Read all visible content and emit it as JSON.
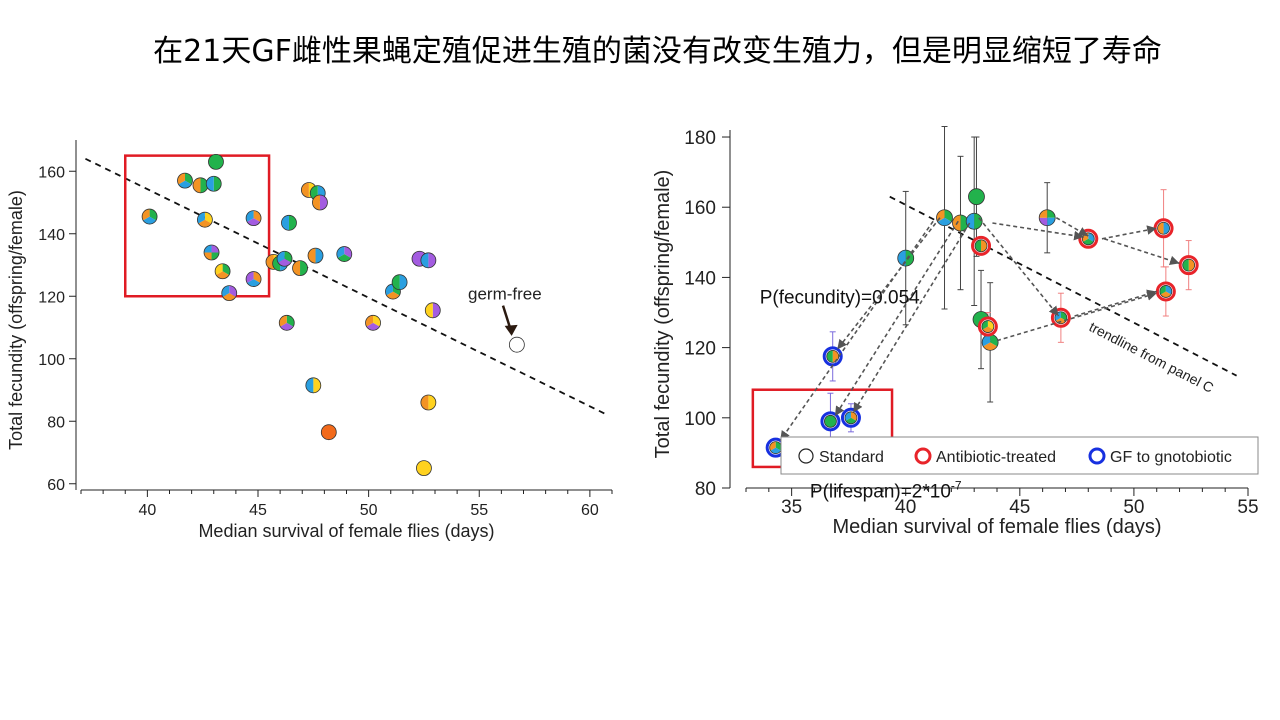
{
  "slide": {
    "title": "在21天GF雌性果蝇定殖促进生殖的菌没有改变生殖力，但是明显缩短了寿命"
  },
  "colors": {
    "green": "#22b24c",
    "orange": "#f39324",
    "blue": "#2a9fe0",
    "purple": "#a35ce0",
    "yellow": "#ffd21f",
    "red_orange": "#f26a1b",
    "red": "#e8242a",
    "blue_ring": "#1730e0",
    "highlight_box": "#e01b24",
    "arrow": "#555555"
  },
  "chart_data": [
    {
      "type": "scatter",
      "xlabel": "Median survival of female flies (days)",
      "ylabel": "Total fecundity (offspring/female)",
      "xlim": [
        37,
        61
      ],
      "ylim": [
        58,
        170
      ],
      "xticks": [
        40,
        45,
        50,
        55,
        60
      ],
      "yticks": [
        60,
        80,
        100,
        120,
        140,
        160
      ],
      "trendline": {
        "from": [
          37.2,
          164
        ],
        "to": [
          60.8,
          82
        ]
      },
      "highlight_box": {
        "x": [
          39,
          45.5
        ],
        "y": [
          120,
          165
        ]
      },
      "annotation": {
        "text": "germ-free",
        "x": 56.3,
        "y": 117,
        "arrow_to": [
          56.6,
          107
        ]
      },
      "points": [
        {
          "x": 43.1,
          "y": 163,
          "colors": [
            "green"
          ]
        },
        {
          "x": 41.7,
          "y": 157,
          "colors": [
            "green",
            "blue",
            "orange"
          ]
        },
        {
          "x": 42.4,
          "y": 155.5,
          "colors": [
            "green",
            "orange"
          ]
        },
        {
          "x": 43.0,
          "y": 156,
          "colors": [
            "green",
            "blue"
          ]
        },
        {
          "x": 40.1,
          "y": 145.5,
          "colors": [
            "green",
            "blue",
            "orange"
          ]
        },
        {
          "x": 42.6,
          "y": 144.5,
          "colors": [
            "yellow",
            "orange",
            "blue"
          ]
        },
        {
          "x": 42.9,
          "y": 134,
          "colors": [
            "purple",
            "green",
            "orange",
            "blue"
          ]
        },
        {
          "x": 43.4,
          "y": 128,
          "colors": [
            "green",
            "orange",
            "yellow"
          ]
        },
        {
          "x": 43.7,
          "y": 121,
          "colors": [
            "purple",
            "orange",
            "blue"
          ]
        },
        {
          "x": 44.8,
          "y": 145,
          "colors": [
            "orange",
            "purple",
            "blue"
          ]
        },
        {
          "x": 44.8,
          "y": 125.5,
          "colors": [
            "orange",
            "blue",
            "purple"
          ]
        },
        {
          "x": 45.7,
          "y": 131,
          "colors": [
            "yellow",
            "orange"
          ]
        },
        {
          "x": 46.0,
          "y": 130.5,
          "colors": [
            "blue",
            "green"
          ]
        },
        {
          "x": 46.2,
          "y": 132,
          "colors": [
            "green",
            "purple",
            "blue"
          ]
        },
        {
          "x": 46.4,
          "y": 143.5,
          "colors": [
            "green",
            "blue"
          ]
        },
        {
          "x": 46.3,
          "y": 111.5,
          "colors": [
            "green",
            "purple",
            "orange"
          ]
        },
        {
          "x": 46.9,
          "y": 129,
          "colors": [
            "green",
            "orange"
          ]
        },
        {
          "x": 47.3,
          "y": 154,
          "colors": [
            "yellow",
            "orange"
          ]
        },
        {
          "x": 47.7,
          "y": 153,
          "colors": [
            "blue",
            "green"
          ]
        },
        {
          "x": 47.8,
          "y": 150,
          "colors": [
            "purple",
            "orange"
          ]
        },
        {
          "x": 47.6,
          "y": 133,
          "colors": [
            "blue",
            "orange"
          ]
        },
        {
          "x": 47.5,
          "y": 91.5,
          "colors": [
            "yellow",
            "blue"
          ]
        },
        {
          "x": 48.2,
          "y": 76.5,
          "colors": [
            "red_orange"
          ]
        },
        {
          "x": 48.9,
          "y": 133.5,
          "colors": [
            "purple",
            "green",
            "blue"
          ]
        },
        {
          "x": 50.2,
          "y": 111.5,
          "colors": [
            "yellow",
            "purple",
            "orange"
          ]
        },
        {
          "x": 51.1,
          "y": 121.5,
          "colors": [
            "green",
            "orange",
            "blue"
          ]
        },
        {
          "x": 51.4,
          "y": 124.5,
          "colors": [
            "blue",
            "green"
          ]
        },
        {
          "x": 52.3,
          "y": 132,
          "colors": [
            "purple"
          ]
        },
        {
          "x": 52.7,
          "y": 131.5,
          "colors": [
            "purple",
            "blue"
          ]
        },
        {
          "x": 52.9,
          "y": 115.5,
          "colors": [
            "purple",
            "yellow"
          ]
        },
        {
          "x": 52.7,
          "y": 86,
          "colors": [
            "yellow",
            "orange"
          ]
        },
        {
          "x": 52.5,
          "y": 65,
          "colors": [
            "yellow"
          ]
        },
        {
          "x": 56.7,
          "y": 104.5,
          "colors": [
            "white"
          ]
        }
      ]
    },
    {
      "type": "scatter",
      "xlabel": "Median survival of female flies (days)",
      "ylabel": "Total fecundity (offspring/female)",
      "xlim": [
        33,
        55
      ],
      "ylim": [
        80,
        182
      ],
      "xticks": [
        35,
        40,
        45,
        50,
        55
      ],
      "yticks": [
        80,
        100,
        120,
        140,
        160,
        180
      ],
      "trendline": {
        "from": [
          39.3,
          163
        ],
        "to": [
          54.5,
          112
        ]
      },
      "trendline_label": "trendline from panel C",
      "highlight_box": {
        "x": [
          33.3,
          39.4
        ],
        "y": [
          86,
          108
        ]
      },
      "annotations": [
        {
          "text": "P(fecundity)=0.054",
          "x": 33.6,
          "y": 132.5
        },
        {
          "text": "P(lifespan)=2*10",
          "superscript": "-7",
          "x": 35.8,
          "y": 83
        }
      ],
      "legend": {
        "position": "bottom-right",
        "items": [
          {
            "label": "Standard",
            "ring": "standard"
          },
          {
            "label": "Antibiotic-treated",
            "ring": "antibiotic"
          },
          {
            "label": "GF to gnotobiotic",
            "ring": "gf"
          }
        ]
      },
      "points": [
        {
          "x": 41.7,
          "y": 157,
          "err": 26,
          "ring": "standard",
          "colors": [
            "green",
            "blue",
            "orange"
          ]
        },
        {
          "x": 42.4,
          "y": 155.5,
          "err": 19,
          "ring": "standard",
          "colors": [
            "green",
            "orange"
          ]
        },
        {
          "x": 43.0,
          "y": 156,
          "err": 24,
          "ring": "standard",
          "colors": [
            "green",
            "blue"
          ]
        },
        {
          "x": 43.1,
          "y": 163,
          "err": 17,
          "ring": "standard",
          "colors": [
            "green"
          ]
        },
        {
          "x": 40.0,
          "y": 145.5,
          "err": 19,
          "ring": "standard",
          "colors": [
            "green",
            "blue"
          ]
        },
        {
          "x": 46.2,
          "y": 157,
          "err": 10,
          "ring": "standard",
          "colors": [
            "green",
            "blue",
            "purple",
            "orange"
          ]
        },
        {
          "x": 43.3,
          "y": 128,
          "err": 14,
          "ring": "standard",
          "colors": [
            "green"
          ]
        },
        {
          "x": 43.7,
          "y": 121.5,
          "err": 17,
          "ring": "standard",
          "colors": [
            "green",
            "orange",
            "blue"
          ]
        },
        {
          "x": 43.3,
          "y": 149,
          "err": 0,
          "ring": "antibiotic",
          "colors": [
            "orange",
            "green"
          ]
        },
        {
          "x": 43.6,
          "y": 126,
          "err": 4,
          "ring": "antibiotic",
          "colors": [
            "yellow",
            "orange",
            "green"
          ]
        },
        {
          "x": 46.8,
          "y": 128.5,
          "err": 7,
          "ring": "antibiotic",
          "colors": [
            "green",
            "orange",
            "blue"
          ]
        },
        {
          "x": 48.0,
          "y": 151,
          "err": 2,
          "ring": "antibiotic",
          "colors": [
            "blue",
            "green",
            "orange"
          ]
        },
        {
          "x": 51.3,
          "y": 154,
          "err": 11,
          "ring": "antibiotic",
          "colors": [
            "blue",
            "orange"
          ]
        },
        {
          "x": 52.4,
          "y": 143.5,
          "err": 7,
          "ring": "antibiotic",
          "colors": [
            "orange",
            "green"
          ]
        },
        {
          "x": 51.4,
          "y": 136,
          "err": 7,
          "ring": "antibiotic",
          "colors": [
            "blue",
            "orange",
            "green"
          ]
        },
        {
          "x": 36.8,
          "y": 117.5,
          "err": 7,
          "ring": "gf",
          "colors": [
            "orange",
            "green"
          ]
        },
        {
          "x": 36.7,
          "y": 99,
          "err": 8,
          "ring": "gf",
          "colors": [
            "green"
          ]
        },
        {
          "x": 37.6,
          "y": 100,
          "err": 4,
          "ring": "gf",
          "colors": [
            "orange",
            "green",
            "blue"
          ]
        },
        {
          "x": 34.3,
          "y": 91.5,
          "err": 2,
          "ring": "gf",
          "colors": [
            "green",
            "blue",
            "orange"
          ]
        }
      ],
      "arrows": [
        {
          "from": [
            43.2,
            157
          ],
          "to": [
            46.7,
            129
          ]
        },
        {
          "from": [
            43.8,
            155.5
          ],
          "to": [
            47.8,
            151.5
          ]
        },
        {
          "from": [
            48.6,
            151
          ],
          "to": [
            51.0,
            154
          ]
        },
        {
          "from": [
            48.7,
            151
          ],
          "to": [
            52.0,
            144
          ]
        },
        {
          "from": [
            46.6,
            157
          ],
          "to": [
            48.0,
            151.8
          ]
        },
        {
          "from": [
            47.4,
            129
          ],
          "to": [
            51.0,
            136
          ]
        },
        {
          "from": [
            44.0,
            122
          ],
          "to": [
            51.0,
            135.5
          ]
        },
        {
          "from": [
            41.5,
            157
          ],
          "to": [
            37.0,
            119.5
          ]
        },
        {
          "from": [
            42.3,
            156
          ],
          "to": [
            36.9,
            100.5
          ]
        },
        {
          "from": [
            42.8,
            155.5
          ],
          "to": [
            37.7,
            101.5
          ]
        },
        {
          "from": [
            41.2,
            156
          ],
          "to": [
            34.5,
            93.5
          ]
        }
      ]
    }
  ]
}
